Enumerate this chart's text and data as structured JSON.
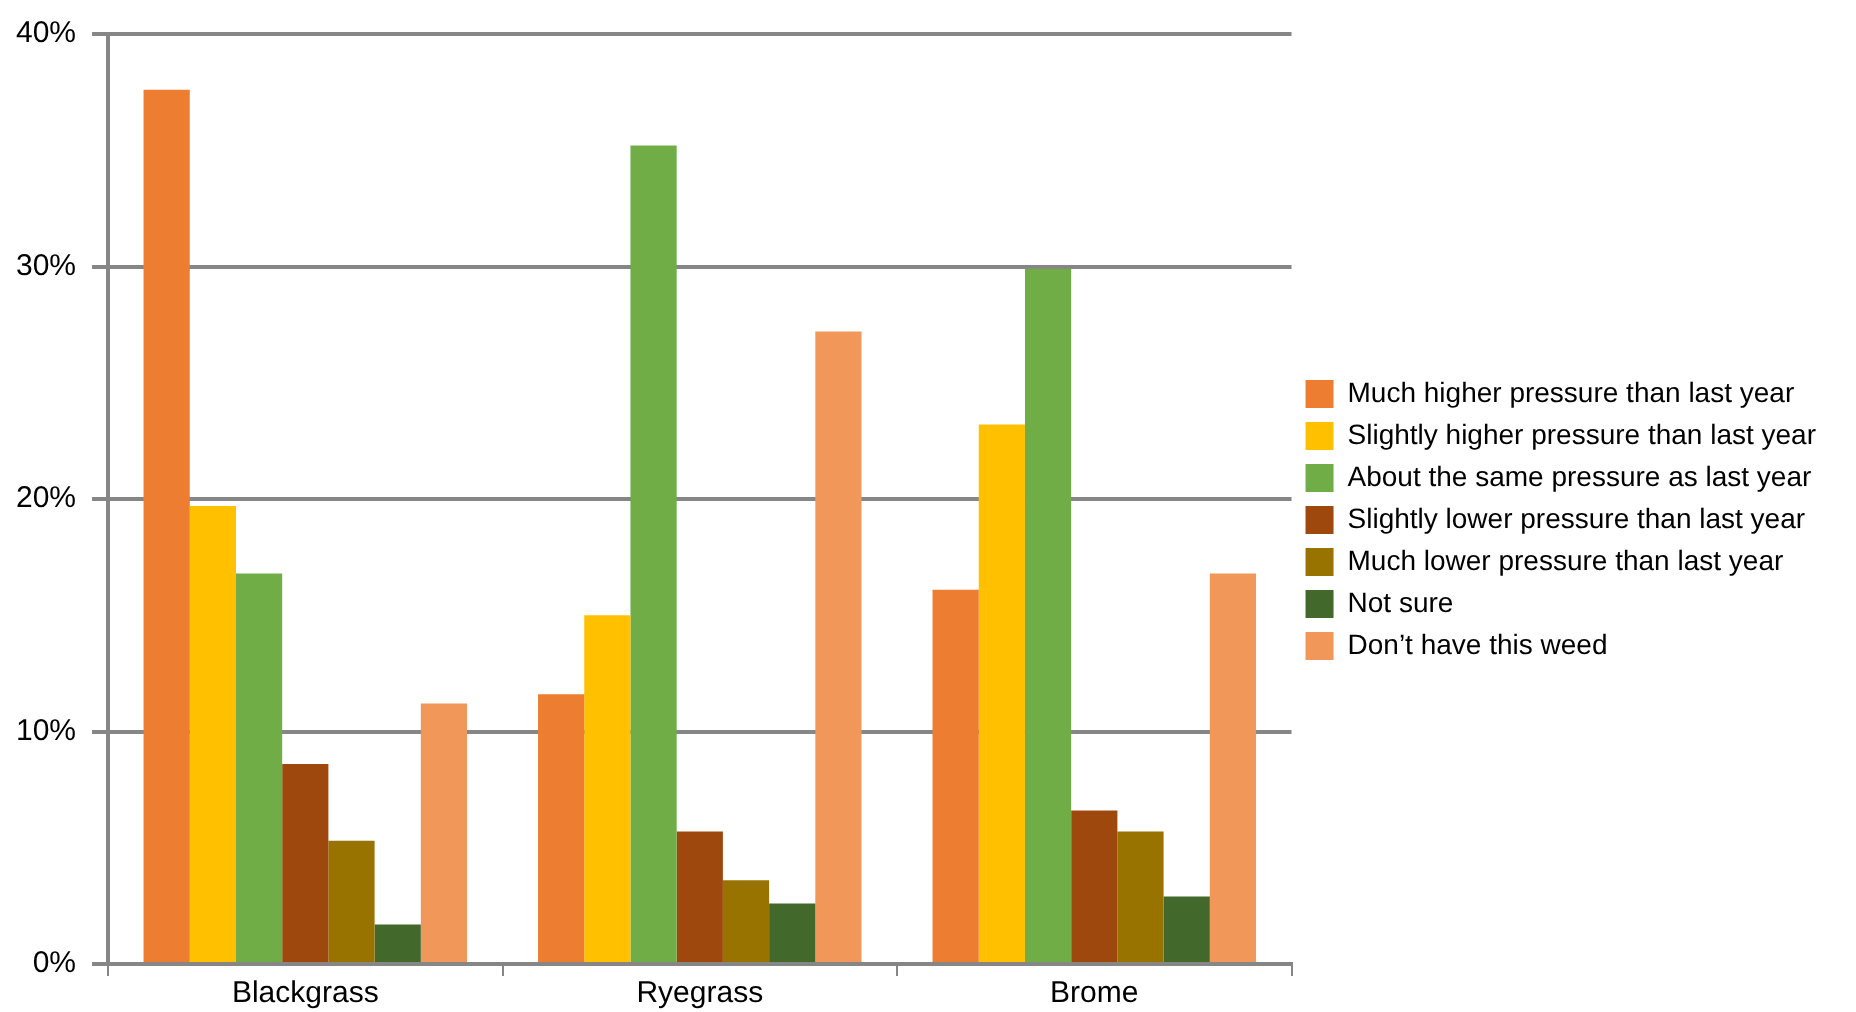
{
  "chart_data": {
    "type": "bar",
    "categories": [
      "Blackgrass",
      "Ryegrass",
      "Brome"
    ],
    "series": [
      {
        "name": "Much higher pressure than last year",
        "color": "#ed7d31",
        "values": [
          37.6,
          11.6,
          16.1
        ]
      },
      {
        "name": "Slightly higher pressure than last year",
        "color": "#ffc000",
        "values": [
          19.7,
          15.0,
          23.2
        ]
      },
      {
        "name": "About the same pressure as last year",
        "color": "#70ad47",
        "values": [
          16.8,
          35.2,
          29.9
        ]
      },
      {
        "name": "Slightly lower pressure than last year",
        "color": "#9e480e",
        "values": [
          8.6,
          5.7,
          6.6
        ]
      },
      {
        "name": "Much lower pressure than last year",
        "color": "#997300",
        "values": [
          5.3,
          3.6,
          5.7
        ]
      },
      {
        "name": "Not sure",
        "color": "#43682b",
        "values": [
          1.7,
          2.6,
          2.9
        ]
      },
      {
        "name": "Don’t have this weed",
        "color": "#f1975a",
        "values": [
          11.2,
          27.2,
          16.8
        ]
      }
    ],
    "ylim": [
      0,
      40
    ],
    "yticks": [
      {
        "value": 0,
        "label": "0%"
      },
      {
        "value": 10,
        "label": "10%"
      },
      {
        "value": 20,
        "label": "20%"
      },
      {
        "value": 30,
        "label": "30%"
      },
      {
        "value": 40,
        "label": "40%"
      }
    ],
    "grid": "y",
    "legend": "right"
  }
}
